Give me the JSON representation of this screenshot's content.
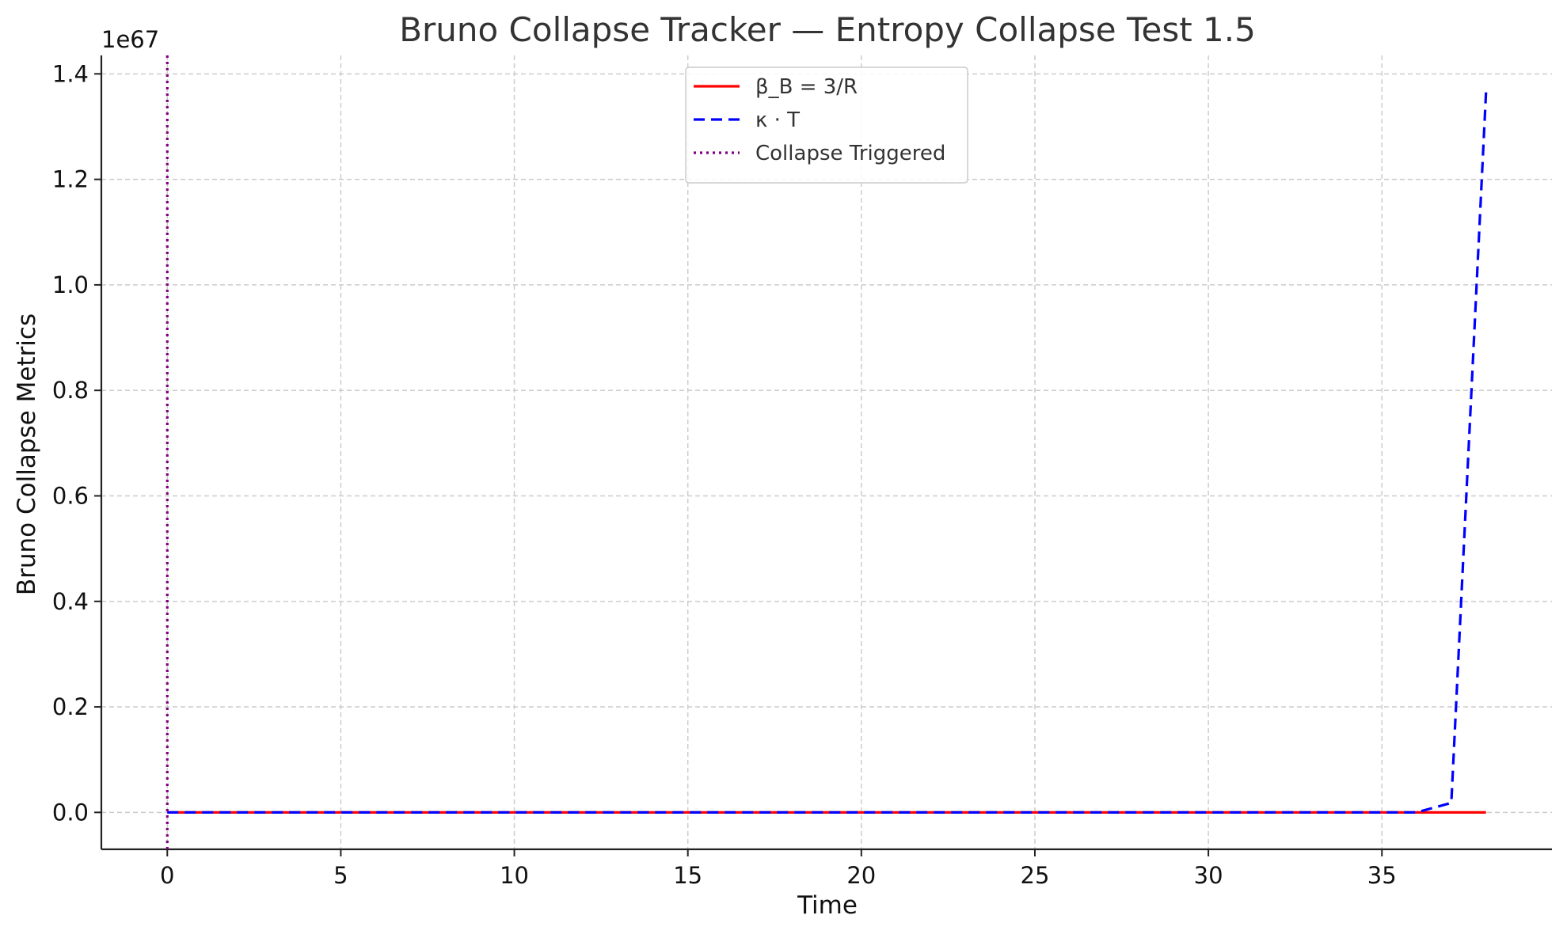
{
  "chart_data": {
    "type": "line",
    "title": "Bruno Collapse Tracker — Entropy Collapse Test 1.5",
    "xlabel": "Time",
    "ylabel": "Bruno Collapse Metrics",
    "offset_text": "1e67",
    "xlim": [
      -1.9,
      39.9
    ],
    "ylim": [
      -0.07,
      1.435
    ],
    "x_ticks": [
      0,
      5,
      10,
      15,
      20,
      25,
      30,
      35
    ],
    "y_ticks": [
      0.0,
      0.2,
      0.4,
      0.6,
      0.8,
      1.0,
      1.2,
      1.4
    ],
    "x_tick_labels": [
      "0",
      "5",
      "10",
      "15",
      "20",
      "25",
      "30",
      "35"
    ],
    "y_tick_labels": [
      "0.0",
      "0.2",
      "0.4",
      "0.6",
      "0.8",
      "1.0",
      "1.2",
      "1.4"
    ],
    "grid": true,
    "legend_position": "top-center",
    "series": [
      {
        "name": "β_B = 3/R",
        "color": "#ff0000",
        "style": "solid",
        "x": [
          0,
          38
        ],
        "y": [
          0,
          0
        ]
      },
      {
        "name": "κ · T",
        "color": "#0000ff",
        "style": "dashed",
        "x": [
          0,
          36,
          37,
          38
        ],
        "y": [
          0,
          0,
          0.018,
          1.365
        ]
      }
    ],
    "vlines": [
      {
        "name": "Collapse Triggered",
        "color": "#800080",
        "style": "dotted",
        "x": 0
      }
    ]
  }
}
